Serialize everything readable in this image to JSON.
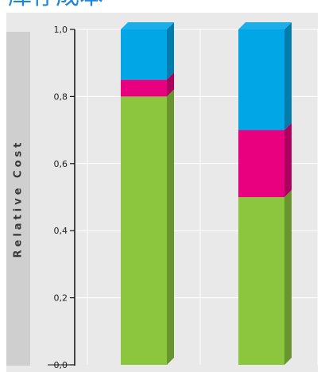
{
  "page": {
    "title": "库存成本"
  },
  "chart_data": {
    "type": "bar",
    "stacked": true,
    "categories": [
      "",
      ""
    ],
    "series": [
      {
        "color": "#8cc63e",
        "values": [
          0.8,
          0.5
        ]
      },
      {
        "color": "#e8007f",
        "values": [
          0.05,
          0.2
        ]
      },
      {
        "color": "#00a6e6",
        "values": [
          0.15,
          0.3
        ]
      }
    ],
    "ylabel": "Relative Cost",
    "ylim": [
      0,
      1.0
    ],
    "yticks": [
      "0,0",
      "0,2",
      "0,4",
      "0,6",
      "0,8",
      "1,0"
    ],
    "grid": true
  }
}
